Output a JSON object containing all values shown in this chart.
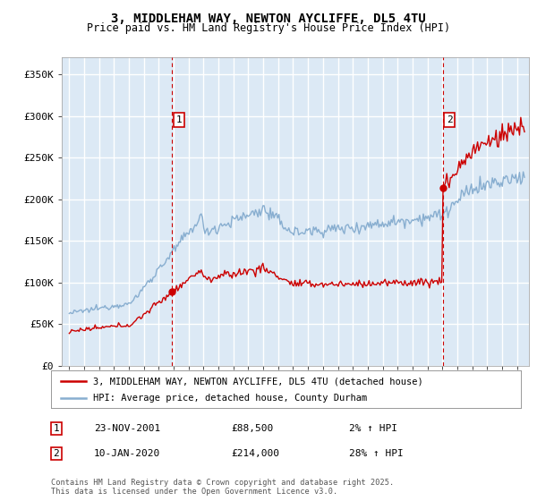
{
  "title": "3, MIDDLEHAM WAY, NEWTON AYCLIFFE, DL5 4TU",
  "subtitle": "Price paid vs. HM Land Registry's House Price Index (HPI)",
  "ylim": [
    0,
    370000
  ],
  "yticks": [
    0,
    50000,
    100000,
    150000,
    200000,
    250000,
    300000,
    350000
  ],
  "background_color": "#dce9f5",
  "grid_color": "#ffffff",
  "line1_color": "#cc0000",
  "line2_color": "#88aed0",
  "vline_color": "#cc0000",
  "annotation_box_color": "#cc0000",
  "sale1_date": 2001.9,
  "sale1_price": 88500,
  "sale1_label": "1",
  "sale2_date": 2020.03,
  "sale2_price": 214000,
  "sale2_label": "2",
  "legend_line1": "3, MIDDLEHAM WAY, NEWTON AYCLIFFE, DL5 4TU (detached house)",
  "legend_line2": "HPI: Average price, detached house, County Durham",
  "note1_label": "1",
  "note1_date": "23-NOV-2001",
  "note1_price": "£88,500",
  "note1_hpi": "2% ↑ HPI",
  "note2_label": "2",
  "note2_date": "10-JAN-2020",
  "note2_price": "£214,000",
  "note2_hpi": "28% ↑ HPI",
  "copyright": "Contains HM Land Registry data © Crown copyright and database right 2025.\nThis data is licensed under the Open Government Licence v3.0.",
  "xlim_left": 1994.5,
  "xlim_right": 2025.8
}
